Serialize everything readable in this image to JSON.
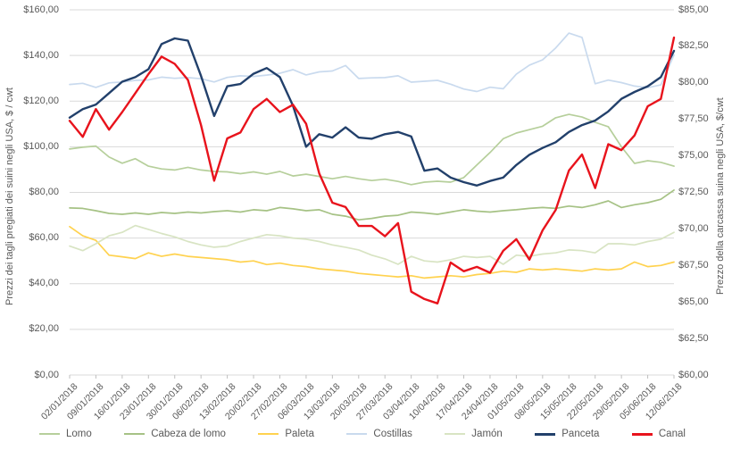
{
  "chart_data": {
    "type": "line",
    "left_axis": {
      "title": "Prezzi dei tagli pregiati dei suini negli USA, $ / cwt",
      "min": 0,
      "max": 160,
      "step": 20,
      "ticks": [
        "$160,00",
        "$140,00",
        "$120,00",
        "$100,00",
        "$80,00",
        "$60,00",
        "$40,00",
        "$20,00",
        "$0,00"
      ]
    },
    "right_axis": {
      "title": "Prezzo della carcassa suina negli USA, $/cwt",
      "min": 60,
      "max": 85,
      "step": 2.5,
      "ticks": [
        "$85,00",
        "$82,50",
        "$80,00",
        "$77,50",
        "$75,00",
        "$72,50",
        "$70,00",
        "$67,50",
        "$65,00",
        "$62,50",
        "$60,00"
      ]
    },
    "x_axis": {
      "labels": [
        "02/01/2018",
        "09/01/2018",
        "16/01/2018",
        "23/01/2018",
        "30/01/2018",
        "06/02/2018",
        "13/02/2018",
        "20/02/2018",
        "27/02/2018",
        "06/03/2018",
        "13/03/2018",
        "20/03/2018",
        "27/03/2018",
        "03/04/2018",
        "10/04/2018",
        "17/04/2018",
        "24/04/2018",
        "01/05/2018",
        "08/05/2018",
        "15/05/2018",
        "22/05/2018",
        "29/05/2018",
        "05/06/2018",
        "12/06/2018"
      ],
      "points_per_week": 2,
      "grid": "horizontal-only"
    },
    "colors": {
      "grid": "#d9d9d9",
      "axis_text": "#595959"
    },
    "series": [
      {
        "name": "Lomo",
        "axis": "left",
        "color": "#b6cf9b",
        "width": 1.7,
        "values": [
          99,
          99.8,
          100.3,
          95.5,
          92.8,
          94.8,
          91.5,
          90.3,
          89.8,
          91,
          89.8,
          89.2,
          89,
          88.2,
          89,
          88,
          89.2,
          87.2,
          88,
          87,
          86,
          87,
          86,
          85.2,
          85.8,
          84.8,
          83.4,
          84.5,
          84.9,
          84.5,
          86.5,
          92,
          97.5,
          103.5,
          106,
          107.5,
          109,
          112.7,
          114.2,
          113,
          110.7,
          108.8,
          100,
          92.7,
          93.9,
          93.2,
          91.5
        ]
      },
      {
        "name": "Cabeza de lomo",
        "axis": "left",
        "color": "#a6c285",
        "width": 1.7,
        "values": [
          73.2,
          73,
          72,
          70.8,
          70.4,
          71,
          70.4,
          71.2,
          70.8,
          71.4,
          71,
          71.6,
          72,
          71.4,
          72.4,
          72,
          73.4,
          72.8,
          72,
          72.4,
          70.4,
          69.6,
          68,
          68.6,
          69.6,
          70,
          71.4,
          71,
          70.4,
          71.4,
          72.4,
          71.8,
          71.4,
          72,
          72.4,
          73,
          73.4,
          73,
          74,
          73.4,
          74.6,
          76.3,
          73.4,
          74.6,
          75.5,
          77,
          81
        ]
      },
      {
        "name": "Paleta",
        "axis": "left",
        "color": "#ffd24f",
        "width": 1.7,
        "values": [
          65,
          61,
          59,
          52.5,
          51.8,
          51,
          53.5,
          52,
          53,
          52,
          51.5,
          51,
          50.5,
          49.5,
          50,
          48.4,
          49,
          48,
          47.5,
          46.5,
          46,
          45.5,
          44.5,
          44,
          43.5,
          43,
          43.5,
          42.5,
          43,
          43.5,
          43,
          44,
          44.5,
          45.5,
          45,
          46.5,
          46,
          46.5,
          46,
          45.5,
          46.5,
          46,
          46.5,
          49.5,
          47.5,
          48,
          49.5
        ]
      },
      {
        "name": "Costillas",
        "axis": "left",
        "color": "#c9daee",
        "width": 1.7,
        "values": [
          127.3,
          127.8,
          126,
          128,
          128.4,
          129.1,
          129.3,
          130.5,
          130,
          130.3,
          129.8,
          128.4,
          130.4,
          131.1,
          130.8,
          131.4,
          132.2,
          133.8,
          131.5,
          132.8,
          133.2,
          135.6,
          129.9,
          130.2,
          130.3,
          131.1,
          128.3,
          128.7,
          129.1,
          127.4,
          125.3,
          124.2,
          126.1,
          125.4,
          131.8,
          135.8,
          138.1,
          143.3,
          149.8,
          147.9,
          127.6,
          129.2,
          128.1,
          126.6,
          125.9,
          127.1,
          140.2
        ]
      },
      {
        "name": "Jamón",
        "axis": "left",
        "color": "#d8e4c3",
        "width": 1.7,
        "values": [
          56.5,
          54.5,
          57.5,
          61,
          62.5,
          65.5,
          63.8,
          62,
          60.5,
          58.5,
          57,
          56,
          56.5,
          58.5,
          60,
          61.5,
          61,
          60,
          59.5,
          58.5,
          57,
          56,
          54.8,
          52.5,
          50.9,
          48.5,
          52,
          50,
          49.5,
          50.5,
          52,
          51.5,
          52,
          48.5,
          52.5,
          52,
          53,
          53.5,
          54.8,
          54.5,
          53.5,
          57.5,
          57.5,
          57,
          58.5,
          59.5,
          62.5
        ]
      },
      {
        "name": "Panceta",
        "axis": "left",
        "color": "#22406b",
        "width": 2.4,
        "values": [
          112.8,
          116.5,
          118.5,
          123.5,
          128.5,
          130.5,
          134,
          145,
          147.5,
          146.5,
          131,
          113.5,
          126.5,
          127.5,
          132,
          134.5,
          130.5,
          118,
          100,
          105.5,
          104,
          108.5,
          104,
          103.5,
          105.5,
          106.5,
          104.5,
          89.5,
          90.5,
          86.5,
          84.5,
          83,
          85,
          86.5,
          92,
          96.5,
          99.5,
          102,
          106.5,
          109.5,
          111.5,
          115.5,
          121,
          124,
          126.5,
          130.5,
          142
        ]
      },
      {
        "name": "Canal",
        "axis": "right",
        "color": "#e8131c",
        "width": 2.4,
        "values": [
          77.4,
          76.3,
          78.2,
          76.8,
          78,
          79.3,
          80.6,
          81.8,
          81.3,
          80.2,
          77.1,
          73.3,
          76.2,
          76.6,
          78.2,
          78.9,
          78,
          78.5,
          77.2,
          73.8,
          71.8,
          71.5,
          70.2,
          70.2,
          69.5,
          70.4,
          65.7,
          65.2,
          64.9,
          67.7,
          67.1,
          67.4,
          67,
          68.5,
          69.3,
          67.9,
          69.9,
          71.3,
          74,
          75.1,
          72.8,
          75.8,
          75.4,
          76.4,
          78.4,
          78.9,
          83.1
        ]
      }
    ],
    "legend_position": "bottom"
  }
}
